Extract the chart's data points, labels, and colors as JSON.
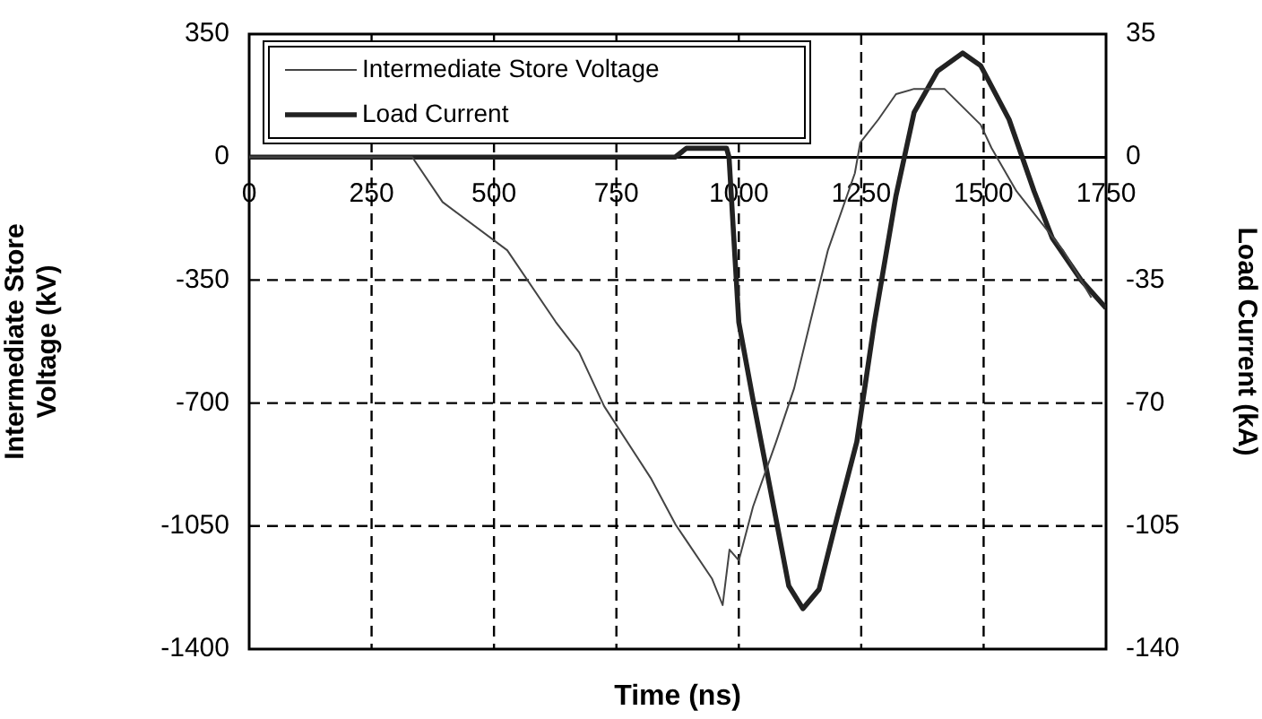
{
  "chart_data": {
    "type": "line",
    "xlabel": "Time (ns)",
    "ylabel": "Intermediate Store Voltage (kV)",
    "y2label": "Load Current (kA)",
    "xlim": [
      0,
      1750
    ],
    "xticks": [
      0,
      250,
      500,
      750,
      1000,
      1250,
      1500,
      1750
    ],
    "ylim": [
      -1400,
      350
    ],
    "yticks": [
      350,
      0,
      -350,
      -700,
      -1050,
      -1400
    ],
    "y2lim": [
      -140,
      35
    ],
    "y2ticks": [
      35,
      0,
      -35,
      -70,
      -105,
      -140
    ],
    "grid": true,
    "legend": "top left",
    "marker": "none",
    "line_style": "solid",
    "series": [
      {
        "name": "Intermediate Store Voltage",
        "color": "#444444",
        "x": [
          0,
          95,
          333,
          395,
          527,
          626,
          674,
          725,
          820,
          871,
          945,
          967,
          981,
          1000,
          1029,
          1076,
          1113,
          1146,
          1182,
          1237,
          1248,
          1285,
          1321,
          1358,
          1420,
          1457,
          1494,
          1516,
          1567,
          1662,
          1720
        ],
        "values": [
          0,
          0,
          0,
          -128,
          -265,
          -469,
          -556,
          -709,
          -913,
          -1046,
          -1199,
          -1275,
          -1117,
          -1148,
          -995,
          -811,
          -658,
          -469,
          -265,
          -46,
          41,
          107,
          179,
          194,
          194,
          143,
          92,
          26,
          -97,
          -265,
          -400
        ]
      },
      {
        "name": "Load Current",
        "color": "#222222",
        "axis": "y2",
        "x": [
          0,
          870,
          893,
          975,
          980,
          1000,
          1029,
          1076,
          1102,
          1131,
          1164,
          1200,
          1241,
          1277,
          1321,
          1358,
          1406,
          1457,
          1494,
          1552,
          1603,
          1640,
          1699,
          1750
        ],
        "values": [
          0,
          0,
          2.5,
          2.5,
          0,
          -47,
          -69,
          -103,
          -122,
          -128.5,
          -123,
          -103,
          -81,
          -47,
          -11,
          12.7,
          24.5,
          29.6,
          26,
          10.7,
          -9.7,
          -23,
          -35,
          -43
        ]
      }
    ]
  }
}
